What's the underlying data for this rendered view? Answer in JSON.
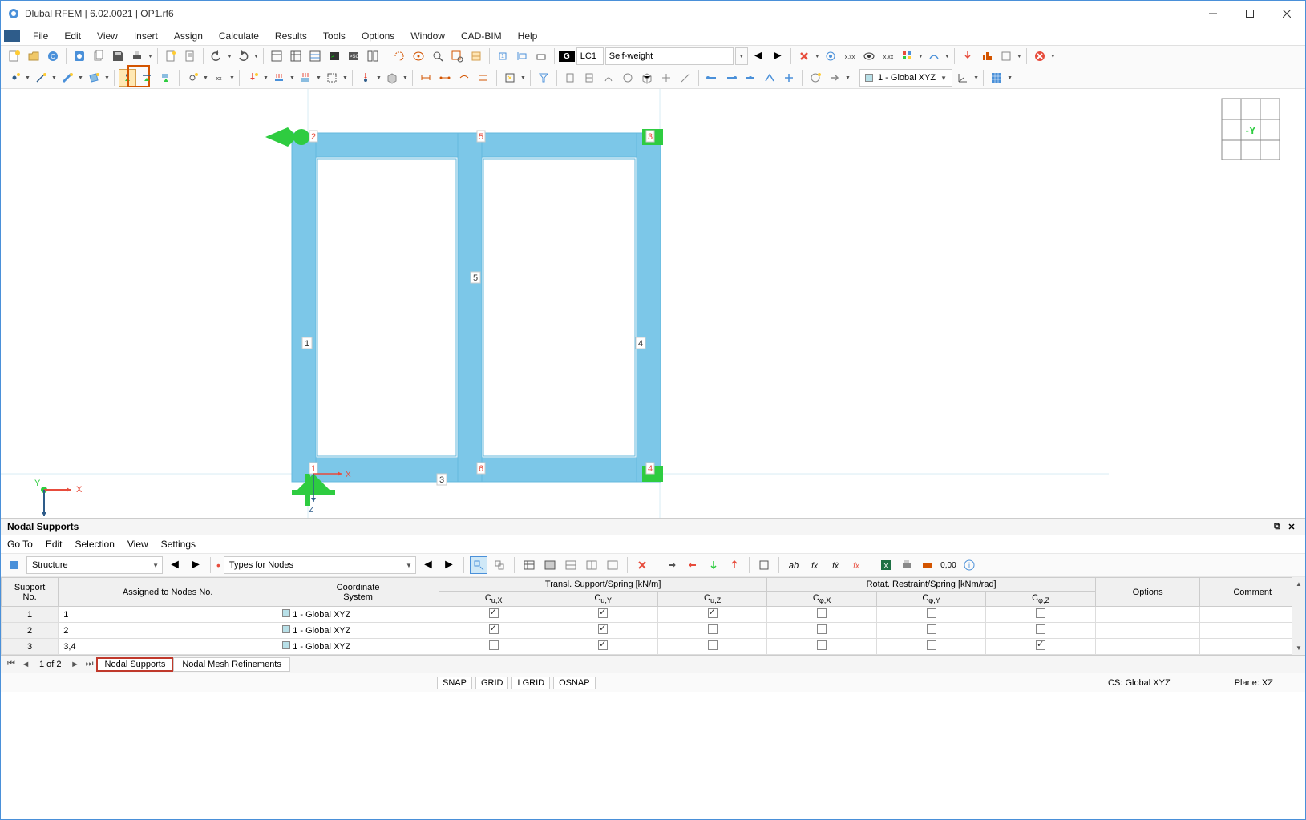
{
  "app": {
    "title": "Dlubal RFEM | 6.02.0021 | OP1.rf6",
    "icon_color": "#4a90d9"
  },
  "menu": {
    "items": [
      "File",
      "Edit",
      "View",
      "Insert",
      "Assign",
      "Calculate",
      "Results",
      "Tools",
      "Options",
      "Window",
      "CAD-BIM",
      "Help"
    ]
  },
  "toolbar1": {
    "loadcase_badge": "G",
    "loadcase_id": "LC1",
    "loadcase_name": "Self-weight"
  },
  "toolbar2": {
    "cs_label": "1 - Global XYZ"
  },
  "viewport": {
    "member_labels": {
      "m1": "1",
      "m2": "2",
      "m3": "3",
      "m4": "4",
      "m5": "5"
    },
    "node_labels": {
      "n1": "1",
      "n2": "2",
      "n3": "3",
      "n4": "4",
      "n5": "5",
      "n6": "6"
    },
    "axes": {
      "x": "X",
      "z": "Z",
      "y": "Y"
    },
    "navcube_face": "-Y",
    "ruler": {
      "val": "2"
    },
    "frame_color": "#7cc7e8",
    "frame_edge": "#65b8de",
    "support_color": "#2ecc40",
    "axis_x": "#e74c3c",
    "axis_z": "#2e5c8a"
  },
  "panel": {
    "title": "Nodal Supports",
    "menu": [
      "Go To",
      "Edit",
      "Selection",
      "View",
      "Settings"
    ],
    "combo1": "Structure",
    "combo2": "Types for Nodes",
    "headers": {
      "support_no": "Support\nNo.",
      "assigned": "Assigned to Nodes No.",
      "cs": "Coordinate\nSystem",
      "transl": "Transl. Support/Spring [kN/m]",
      "rot": "Rotat. Restraint/Spring [kNm/rad]",
      "cux": "Cu,X",
      "cuy": "Cu,Y",
      "cuz": "Cu,Z",
      "cpx": "Cφ,X",
      "cpy": "Cφ,Y",
      "cpz": "Cφ,Z",
      "options": "Options",
      "comment": "Comment"
    },
    "rows": [
      {
        "no": "1",
        "nodes": "1",
        "cs": "1 - Global XYZ",
        "cux": true,
        "cuy": true,
        "cuz": true,
        "cpx": false,
        "cpy": false,
        "cpz": false
      },
      {
        "no": "2",
        "nodes": "2",
        "cs": "1 - Global XYZ",
        "cux": true,
        "cuy": true,
        "cuz": false,
        "cpx": false,
        "cpy": false,
        "cpz": false
      },
      {
        "no": "3",
        "nodes": "3,4",
        "cs": "1 - Global XYZ",
        "cux": false,
        "cuy": true,
        "cuz": false,
        "cpx": false,
        "cpy": false,
        "cpz": true
      }
    ],
    "nav": {
      "pos": "1 of 2"
    },
    "tabs": {
      "active": "Nodal Supports",
      "other": "Nodal Mesh Refinements"
    }
  },
  "status": {
    "toggles": [
      "SNAP",
      "GRID",
      "LGRID",
      "OSNAP"
    ],
    "cs": "CS: Global XYZ",
    "plane": "Plane: XZ"
  },
  "format_num": "0,00"
}
